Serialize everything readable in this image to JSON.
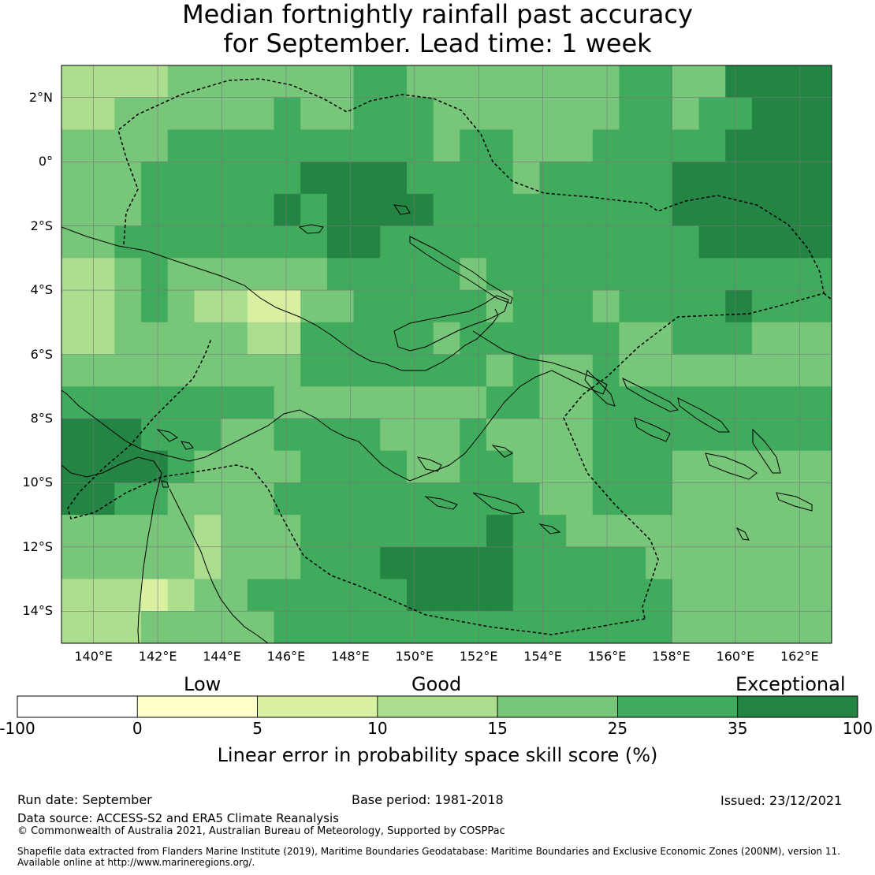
{
  "title": {
    "line1": "Median fortnightly rainfall past accuracy",
    "line2": "for September. Lead time: 1 week"
  },
  "map": {
    "lon_range": [
      139,
      163
    ],
    "lat_range": [
      -15,
      3
    ],
    "lat_labels": [
      "2°N",
      "0°",
      "2°S",
      "4°S",
      "6°S",
      "8°S",
      "10°S",
      "12°S",
      "14°S"
    ],
    "lat_values": [
      2,
      0,
      -2,
      -4,
      -6,
      -8,
      -10,
      -12,
      -14
    ],
    "lon_labels": [
      "140°E",
      "142°E",
      "144°E",
      "146°E",
      "148°E",
      "150°E",
      "152°E",
      "154°E",
      "156°E",
      "158°E",
      "160°E",
      "162°E"
    ],
    "lon_values": [
      140,
      142,
      144,
      146,
      148,
      150,
      152,
      154,
      156,
      158,
      160,
      162
    ],
    "gridlines": true
  },
  "colorbar": {
    "categories": [
      "Low",
      "Good",
      "Exceptional"
    ],
    "tick_labels": [
      "-100",
      "0",
      "5",
      "10",
      "15",
      "25",
      "35",
      "100"
    ],
    "label": "Linear error in probability space skill score (%)",
    "bins": [
      {
        "from": -100,
        "to": 0,
        "color": "#ffffff"
      },
      {
        "from": 0,
        "to": 5,
        "color": "#ffffcc"
      },
      {
        "from": 5,
        "to": 10,
        "color": "#d9f0a3"
      },
      {
        "from": 10,
        "to": 15,
        "color": "#addd8e"
      },
      {
        "from": 15,
        "to": 25,
        "color": "#78c679"
      },
      {
        "from": 25,
        "to": 35,
        "color": "#41ab5d"
      },
      {
        "from": 35,
        "to": 100,
        "color": "#238443"
      }
    ]
  },
  "footer": {
    "run_date": "Run date: September",
    "base_period": "Base period: 1981-2018",
    "issued": "Issued: 23/12/2021",
    "data_source": "Data source: ACCESS-S2 and ERA5 Climate Reanalysis",
    "copyright": "© Commonwealth of Australia 2021, Australian Bureau of Meteorology, Supported by COSPPac",
    "shapefile_line1": "Shapefile data extracted from Flanders Marine Institute (2019), Maritime Boundaries Geodatabase: Maritime Boundaries and Exclusive Economic Zones (200NM), version 11.",
    "shapefile_line2": "Available online at http://www.marineregions.org/."
  }
}
